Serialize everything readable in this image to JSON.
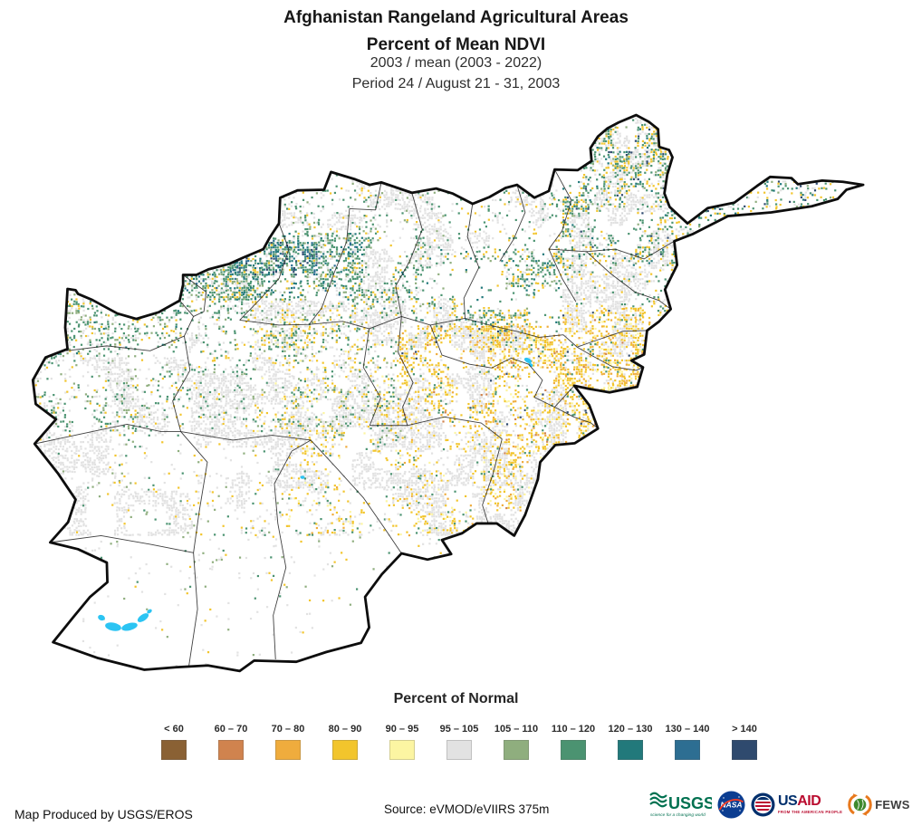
{
  "header": {
    "title": "Afghanistan Rangeland Agricultural Areas",
    "subtitle": "Percent of Mean NDVI",
    "comparison": "2003 / mean (2003 - 2022)",
    "period": "Period 24 / August 21 - 31, 2003"
  },
  "legend": {
    "title": "Percent of Normal",
    "classes": [
      {
        "label": "< 60",
        "color": "#8A6134"
      },
      {
        "label": "60 – 70",
        "color": "#D0834E"
      },
      {
        "label": "70 – 80",
        "color": "#EFAC3D"
      },
      {
        "label": "80 – 90",
        "color": "#F2C52C"
      },
      {
        "label": "90 – 95",
        "color": "#FCF5A2"
      },
      {
        "label": "95 – 105",
        "color": "#E2E2E2"
      },
      {
        "label": "105 – 110",
        "color": "#8FAE7E"
      },
      {
        "label": "110 – 120",
        "color": "#4B9371"
      },
      {
        "label": "120 – 130",
        "color": "#22797B"
      },
      {
        "label": "130 – 140",
        "color": "#2D6E92"
      },
      {
        "label": "> 140",
        "color": "#2F4A6E"
      }
    ]
  },
  "map": {
    "country": "Afghanistan",
    "water_color": "#2BC4F3",
    "outline_color": "#0d0d0d",
    "province_line_color": "#1f1f1f"
  },
  "footer": {
    "produced_by": "Map Produced by USGS/EROS",
    "source": "Source: eVMOD/eVIIRS 375m",
    "logos": [
      {
        "name": "USGS",
        "tagline": "science for a changing world"
      },
      {
        "name": "NASA"
      },
      {
        "name": "USAID",
        "part_us": "US",
        "part_aid": "AID",
        "tagline": "FROM THE AMERICAN PEOPLE"
      },
      {
        "name": "FEWS NET"
      }
    ]
  }
}
